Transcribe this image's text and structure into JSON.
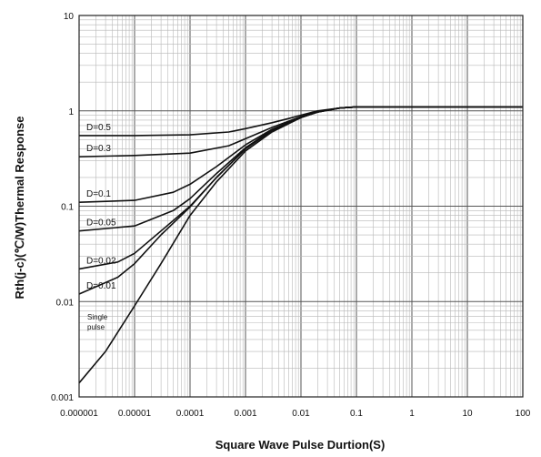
{
  "chart_data": {
    "type": "line",
    "title": "",
    "xlabel": "Square Wave Pulse Durtion(S)",
    "ylabel": "Rth(j-c)(℃/W)Thermal Response",
    "x_scale": "log",
    "y_scale": "log",
    "xlim": [
      1e-06,
      100
    ],
    "ylim": [
      0.001,
      10
    ],
    "grid": true,
    "x_ticks": [
      "0.000001",
      "0.00001",
      "0.0001",
      "0.001",
      "0.01",
      "0.1",
      "1",
      "10",
      "100"
    ],
    "y_ticks": [
      "0.001",
      "0.01",
      "0.1",
      "1",
      "10"
    ],
    "series": [
      {
        "name": "D=0.5",
        "x": [
          1e-06,
          1e-05,
          0.0001,
          0.0005,
          0.001,
          0.003,
          0.006,
          0.01,
          0.02,
          0.05,
          0.1,
          1,
          10,
          100
        ],
        "y": [
          0.55,
          0.55,
          0.56,
          0.6,
          0.65,
          0.75,
          0.83,
          0.9,
          1.0,
          1.07,
          1.1,
          1.1,
          1.1,
          1.1
        ]
      },
      {
        "name": "D=0.3",
        "x": [
          1e-06,
          1e-05,
          0.0001,
          0.0005,
          0.001,
          0.003,
          0.006,
          0.01,
          0.02,
          0.05,
          0.1,
          1,
          10,
          100
        ],
        "y": [
          0.33,
          0.34,
          0.36,
          0.43,
          0.51,
          0.67,
          0.78,
          0.87,
          0.98,
          1.07,
          1.1,
          1.1,
          1.1,
          1.1
        ]
      },
      {
        "name": "D=0.1",
        "x": [
          1e-06,
          1e-05,
          5e-05,
          0.0001,
          0.0003,
          0.001,
          0.003,
          0.01,
          0.02,
          0.05,
          0.1,
          1,
          10,
          100
        ],
        "y": [
          0.11,
          0.115,
          0.14,
          0.17,
          0.26,
          0.44,
          0.64,
          0.86,
          0.98,
          1.07,
          1.1,
          1.1,
          1.1,
          1.1
        ]
      },
      {
        "name": "D=0.05",
        "x": [
          1e-06,
          1e-05,
          5e-05,
          0.0001,
          0.0003,
          0.001,
          0.003,
          0.01,
          0.02,
          0.05,
          0.1,
          1,
          10,
          100
        ],
        "y": [
          0.055,
          0.062,
          0.09,
          0.12,
          0.22,
          0.41,
          0.63,
          0.85,
          0.98,
          1.07,
          1.1,
          1.1,
          1.1,
          1.1
        ]
      },
      {
        "name": "D=0.02",
        "x": [
          1e-06,
          5e-06,
          1e-05,
          3e-05,
          0.0001,
          0.0003,
          0.001,
          0.003,
          0.01,
          0.02,
          0.05,
          0.1,
          1,
          10,
          100
        ],
        "y": [
          0.022,
          0.026,
          0.032,
          0.055,
          0.1,
          0.2,
          0.4,
          0.62,
          0.85,
          0.97,
          1.07,
          1.1,
          1.1,
          1.1,
          1.1
        ]
      },
      {
        "name": "D=0.01",
        "x": [
          1e-06,
          5e-06,
          1e-05,
          3e-05,
          0.0001,
          0.0003,
          0.001,
          0.003,
          0.01,
          0.02,
          0.05,
          0.1,
          1,
          10,
          100
        ],
        "y": [
          0.012,
          0.018,
          0.025,
          0.05,
          0.098,
          0.2,
          0.4,
          0.62,
          0.85,
          0.97,
          1.07,
          1.1,
          1.1,
          1.1,
          1.1
        ]
      },
      {
        "name": "Single pulse",
        "x": [
          1e-06,
          3e-06,
          1e-05,
          3e-05,
          0.0001,
          0.0003,
          0.001,
          0.003,
          0.01,
          0.02,
          0.05,
          0.1,
          1,
          10,
          100
        ],
        "y": [
          0.0014,
          0.003,
          0.009,
          0.025,
          0.08,
          0.18,
          0.38,
          0.6,
          0.85,
          0.97,
          1.07,
          1.1,
          1.1,
          1.1,
          1.1
        ]
      }
    ]
  }
}
